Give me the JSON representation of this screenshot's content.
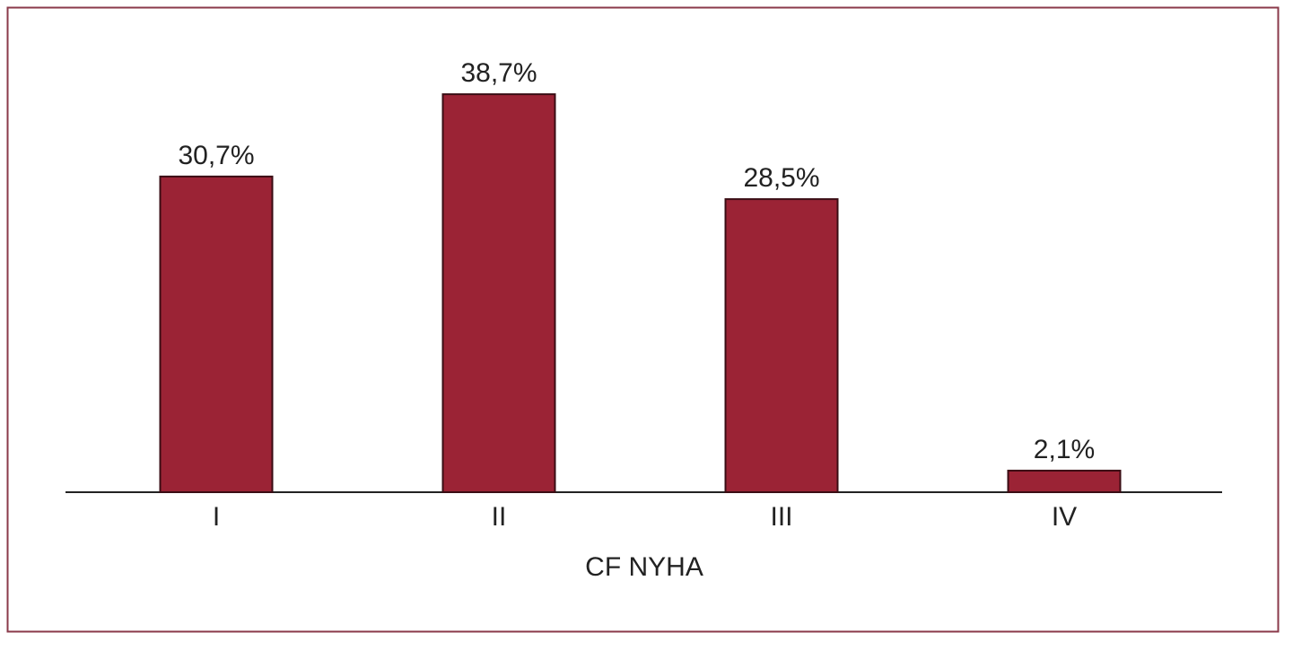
{
  "chart_data": {
    "type": "bar",
    "x_label": "CF NYHA",
    "categories": [
      "I",
      "II",
      "III",
      "IV"
    ],
    "values": [
      30.7,
      38.7,
      28.5,
      2.1
    ],
    "value_labels": [
      "30,7%",
      "38,7%",
      "28,5%",
      "2,1%"
    ],
    "color": "#9b2335"
  }
}
